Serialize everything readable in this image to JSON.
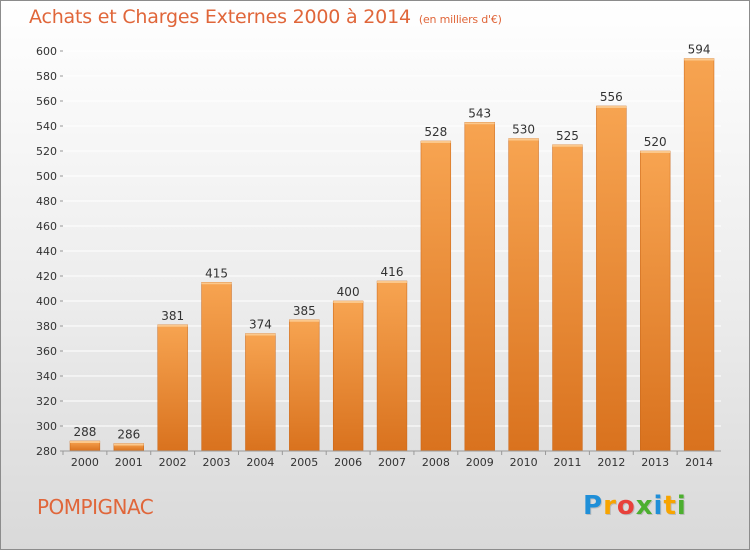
{
  "header": {
    "title": "Achats et Charges Externes 2000 à 2014",
    "subtitle": "(en milliers d'€)"
  },
  "commune": "POMPIGNAC",
  "logo": {
    "text": "Proxiti",
    "letters": [
      "P",
      "r",
      "o",
      "x",
      "i",
      "t",
      "i"
    ],
    "colors": [
      "#1f8fd8",
      "#f7a400",
      "#e8403a",
      "#4caf2f",
      "#1f8fd8",
      "#f7a400",
      "#4caf2f"
    ]
  },
  "colors": {
    "bar_top": "#f7a451",
    "bar_bottom": "#d9721e",
    "bar_edge": "#c86212",
    "grid": "#ffffff",
    "axis_text": "#333333"
  },
  "chart_data": {
    "type": "bar",
    "title": "Achats et Charges Externes 2000 à 2014",
    "unit_label": "(en milliers d'€)",
    "categories": [
      "2000",
      "2001",
      "2002",
      "2003",
      "2004",
      "2005",
      "2006",
      "2007",
      "2008",
      "2009",
      "2010",
      "2011",
      "2012",
      "2013",
      "2014"
    ],
    "values": [
      288,
      286,
      381,
      415,
      374,
      385,
      400,
      416,
      528,
      543,
      530,
      525,
      556,
      520,
      594
    ],
    "ylim": [
      280,
      600
    ],
    "yticks": [
      280,
      300,
      320,
      340,
      360,
      380,
      400,
      420,
      440,
      460,
      480,
      500,
      520,
      540,
      560,
      580,
      600
    ],
    "xlabel": "",
    "ylabel": "",
    "grid": true,
    "data_labels": true
  }
}
